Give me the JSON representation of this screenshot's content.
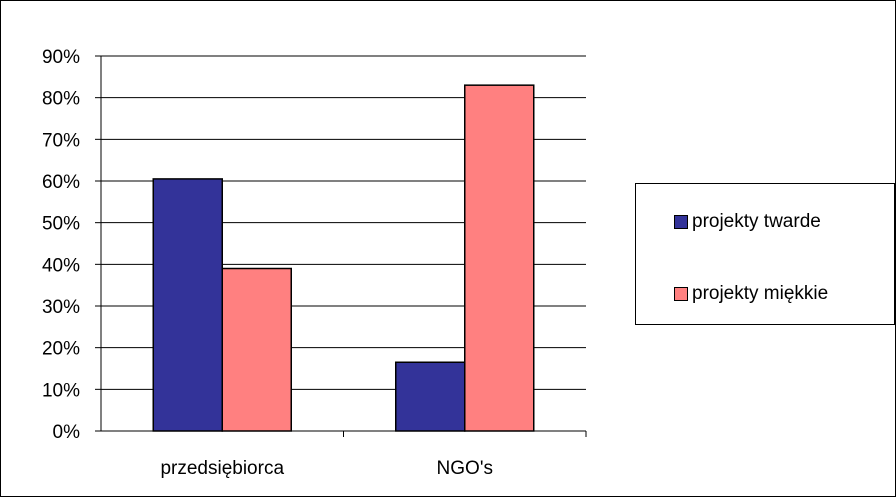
{
  "chart_data": {
    "type": "bar",
    "categories": [
      "przedsiębiorca",
      "NGO's"
    ],
    "series": [
      {
        "name": "projekty twarde",
        "values": [
          60.5,
          16.5
        ],
        "color": "#333399"
      },
      {
        "name": "projekty miękkie",
        "values": [
          39,
          83
        ],
        "color": "#FF8080"
      }
    ],
    "yticks": [
      "0%",
      "10%",
      "20%",
      "30%",
      "40%",
      "50%",
      "60%",
      "70%",
      "80%",
      "90%"
    ],
    "ylim": [
      0,
      90
    ],
    "grid": true,
    "legend_position": "right"
  }
}
